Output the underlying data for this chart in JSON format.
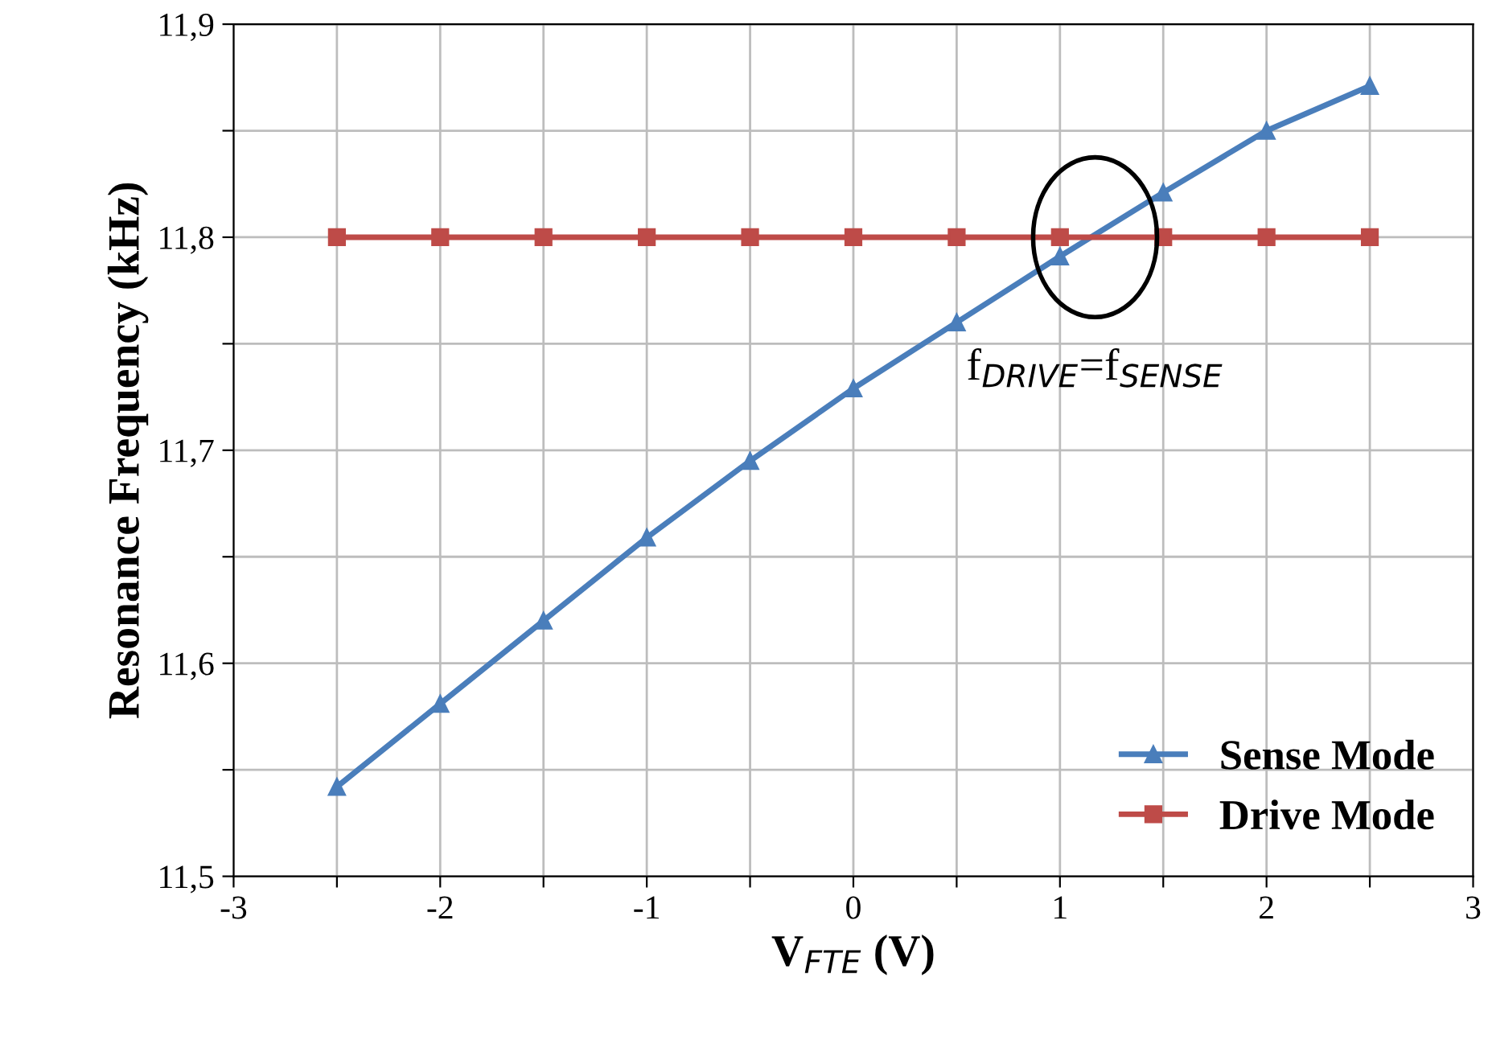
{
  "chart_data": {
    "type": "line",
    "xlabel": "V$_{FTE}$ (V)",
    "ylabel": "Resonance Frequency (kHz)",
    "x": [
      -2.5,
      -2,
      -1.5,
      -1,
      -0.5,
      0,
      0.5,
      1,
      1.5,
      2,
      2.5
    ],
    "series": [
      {
        "name": "Sense Mode",
        "color": "#4a7ebb",
        "marker": "triangle",
        "values": [
          11.542,
          11.581,
          11.62,
          11.659,
          11.695,
          11.729,
          11.76,
          11.791,
          11.821,
          11.85,
          11.871
        ]
      },
      {
        "name": "Drive Mode",
        "color": "#be4b48",
        "marker": "square",
        "values": [
          11.8,
          11.8,
          11.8,
          11.8,
          11.8,
          11.8,
          11.8,
          11.8,
          11.8,
          11.8,
          11.8
        ]
      }
    ],
    "xlim": [
      -3,
      3
    ],
    "ylim": [
      11.5,
      11.9
    ],
    "xticks": [
      -3,
      {
        "value": -2.5,
        "label": null
      },
      -2,
      {
        "value": -1.5,
        "label": null
      },
      -1,
      {
        "value": -0.5,
        "label": null
      },
      0,
      {
        "value": 0.5,
        "label": null
      },
      1,
      {
        "value": 1.5,
        "label": null
      },
      2,
      {
        "value": 2.5,
        "label": null
      },
      3
    ],
    "yticks": [
      {
        "value": 11.5,
        "label": "11,5"
      },
      {
        "value": 11.55,
        "label": null
      },
      {
        "value": 11.6,
        "label": "11,6"
      },
      {
        "value": 11.65,
        "label": null
      },
      {
        "value": 11.7,
        "label": "11,7"
      },
      {
        "value": 11.75,
        "label": null
      },
      {
        "value": 11.8,
        "label": "11,8"
      },
      {
        "value": 11.85,
        "label": null
      },
      {
        "value": 11.9,
        "label": "11,9"
      }
    ],
    "grid": true,
    "legend": "bottom right",
    "line_style": "solid",
    "annotations": [
      {
        "text": "f$_{DRIVE}$=f$_{SENSE}$",
        "x": 1.17,
        "y": 11.8
      }
    ]
  }
}
